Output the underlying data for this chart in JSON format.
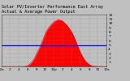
{
  "title_line1": "Solar PV/Inverter Performance East Array",
  "title_line2": "Actual & Average Power Output",
  "title_fontsize": 3.8,
  "bg_color": "#c0c0c0",
  "plot_bg_color": "#c0c0c0",
  "grid_color": "#888888",
  "fill_color": "#ff0000",
  "line_color": "#cc0000",
  "avg_line_color": "#0000ff",
  "avg_value": 4.8,
  "ylim": [
    0,
    12
  ],
  "ytick_vals": [
    1,
    2,
    3,
    4,
    5,
    6,
    7,
    8,
    9,
    10,
    11,
    12
  ],
  "ytick_labels": [
    "1",
    "2",
    "3",
    "4",
    "5",
    "6",
    "7",
    "8",
    "9",
    "10",
    "11",
    "12"
  ],
  "ylabel_fontsize": 3.2,
  "xlabel_fontsize": 3.0,
  "x_hours": [
    0,
    0.5,
    1,
    1.5,
    2,
    2.5,
    3,
    3.5,
    4,
    4.5,
    5,
    5.5,
    6,
    6.5,
    7,
    7.5,
    8,
    8.5,
    9,
    9.5,
    10,
    10.5,
    11,
    11.5,
    12,
    12.5,
    13,
    13.5,
    14,
    14.5,
    15,
    15.5,
    16,
    16.5,
    17,
    17.5,
    18,
    18.5,
    19,
    19.5,
    20,
    20.5,
    21,
    21.5,
    22,
    22.5,
    23,
    23.5,
    24
  ],
  "power_values": [
    0,
    0,
    0,
    0,
    0,
    0,
    0,
    0,
    0,
    0,
    0,
    0.05,
    0.2,
    0.5,
    1.0,
    1.8,
    2.8,
    3.8,
    5.0,
    6.2,
    7.5,
    8.5,
    9.2,
    9.8,
    10.3,
    10.6,
    10.8,
    10.7,
    10.5,
    10.0,
    9.5,
    8.8,
    8.0,
    7.0,
    5.8,
    4.5,
    3.3,
    2.3,
    1.5,
    0.9,
    0.5,
    0.2,
    0.08,
    0.02,
    0,
    0,
    0,
    0,
    0
  ],
  "x_tick_positions": [
    0,
    2,
    4,
    6,
    8,
    10,
    12,
    14,
    16,
    18,
    20,
    22,
    24
  ],
  "x_tick_labels": [
    "12a",
    "2",
    "4",
    "6",
    "8",
    "10",
    "12p",
    "2",
    "4",
    "6",
    "8",
    "10",
    "12a"
  ]
}
